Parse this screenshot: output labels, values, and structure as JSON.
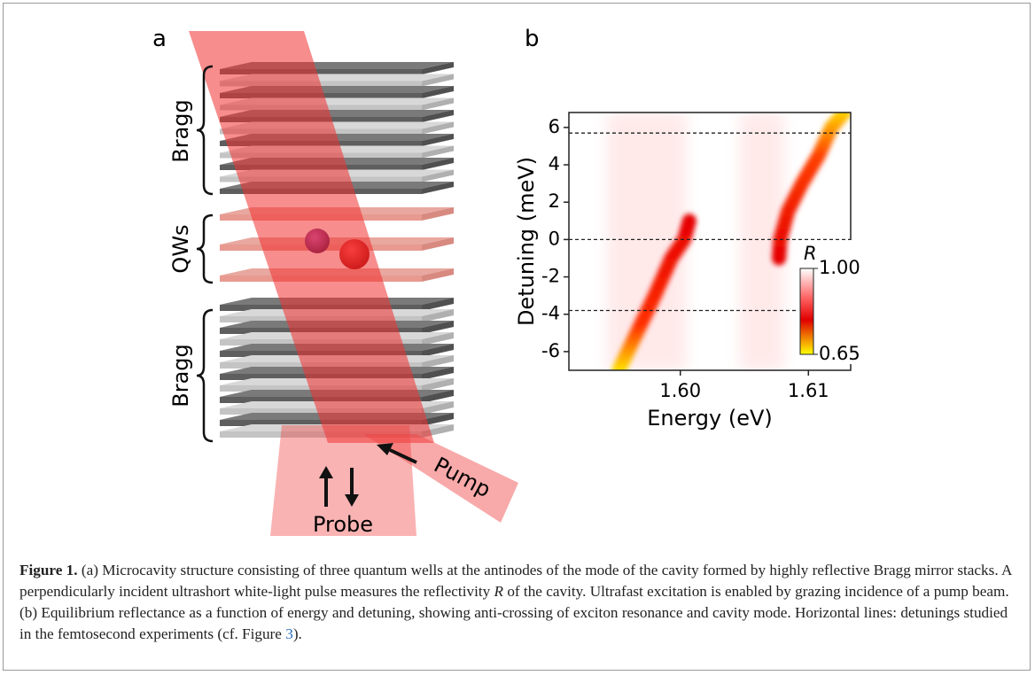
{
  "figure": {
    "panel_a": {
      "label": "a",
      "bragg_top": "Bragg",
      "qws": "QWs",
      "bragg_bottom": "Bragg",
      "probe": "Probe",
      "pump": "Pump"
    },
    "panel_b": {
      "label": "b",
      "type": "heatmap",
      "x_label": "Energy (eV)",
      "y_label": "Detuning (meV)",
      "xlim": [
        1.5913,
        1.6133
      ],
      "ylim": [
        -7,
        6.8
      ],
      "xticks": [
        {
          "value": 1.6,
          "label": "1.60"
        },
        1.61
      ],
      "yticks": [
        -6,
        -4,
        -2,
        0,
        2,
        4,
        6
      ],
      "hlines": [
        5.7,
        0,
        -3.8
      ],
      "branches": [
        {
          "energy": [
            1.5952,
            1.5966,
            1.598,
            1.5993,
            1.6003,
            1.6007
          ],
          "detuning": [
            -7,
            -5,
            -3,
            -1,
            0,
            1
          ]
        },
        {
          "energy": [
            1.6077,
            1.6078,
            1.6084,
            1.6095,
            1.6108,
            1.6118,
            1.6128
          ],
          "detuning": [
            -1,
            0,
            1.5,
            3,
            4.5,
            6,
            6.8
          ]
        }
      ],
      "colorbar": {
        "title": "R",
        "ticks": [
          {
            "value": 1,
            "label": "1.00"
          },
          0.65
        ]
      }
    },
    "caption": {
      "label": "Figure 1.",
      "text_1": " (a) Microcavity structure consisting of three quantum wells at the antinodes of the mode of the cavity formed by highly reflective Bragg mirror stacks. A perpendicularly incident ultrashort white-light pulse measures the reflectivity ",
      "r": "R",
      "text_2": " of the cavity. Ultrafast excitation is enabled by grazing incidence of a pump beam. (b) Equilibrium reflectance as a function of energy and detuning, showing anti-crossing of exciton resonance and cavity mode. Horizontal lines: detunings studied in the femtosecond experiments (cf. Figure ",
      "ref": "3",
      "text_3": ")."
    }
  }
}
